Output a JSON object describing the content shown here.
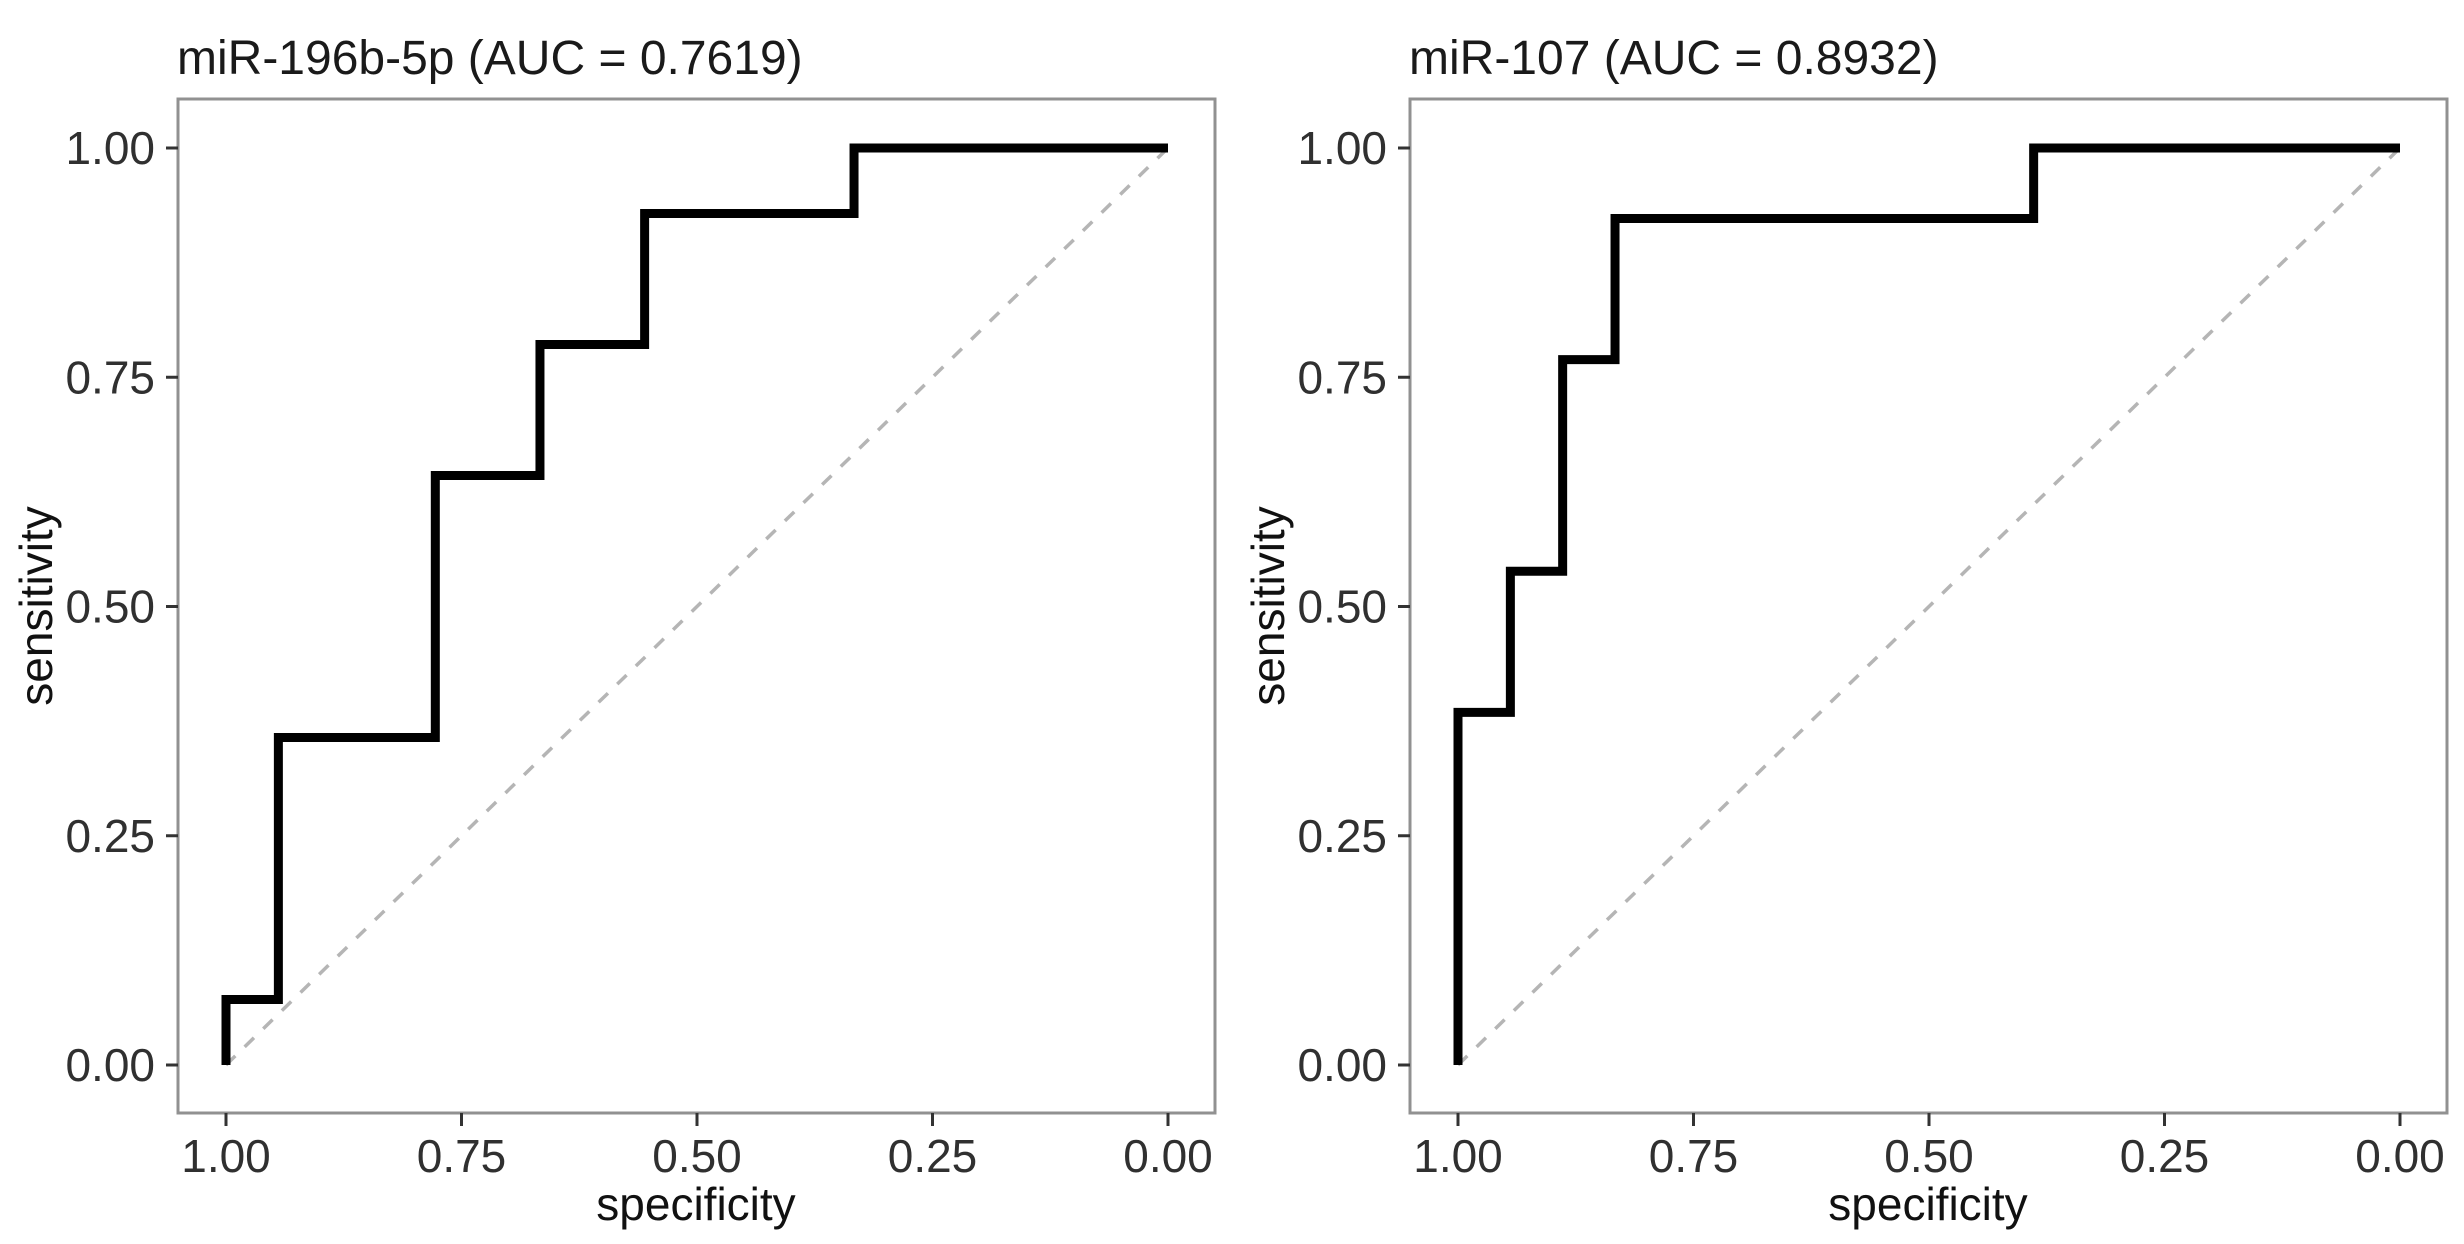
{
  "figure": {
    "background_color": "#ffffff",
    "description_titles": [
      "miR-196b-5p (AUC = 0.7619)",
      "miR-107 (AUC = 0.8932)"
    ]
  },
  "styles": {
    "curve_color": "#000000",
    "curve_width": 9,
    "reference_color": "#b5b5b5",
    "reference_width": 3.5,
    "reference_dash": "13 13",
    "panel_border_color": "#919191",
    "tick_color": "#333333"
  },
  "chart_data": [
    {
      "type": "line",
      "subtype": "roc-step-curve",
      "title": "miR-196b-5p (AUC = 0.7619)",
      "auc": 0.7619,
      "xlabel": "specificity",
      "ylabel": "sensitivity",
      "x_axis_reversed": true,
      "xlim": [
        1.0,
        0.0
      ],
      "ylim": [
        0.0,
        1.0
      ],
      "x_tick_labels": [
        "1.00",
        "0.75",
        "0.50",
        "0.25",
        "0.00"
      ],
      "y_tick_labels": [
        "0.00",
        "0.25",
        "0.50",
        "0.75",
        "1.00"
      ],
      "grid": false,
      "legend": false,
      "roc_curve": {
        "specificity": [
          1.0,
          1.0,
          0.9444,
          0.9444,
          0.7778,
          0.7778,
          0.6667,
          0.6667,
          0.5556,
          0.5556,
          0.3333,
          0.3333,
          0.0
        ],
        "sensitivity": [
          0.0,
          0.0714,
          0.0714,
          0.3571,
          0.3571,
          0.6429,
          0.6429,
          0.7857,
          0.7857,
          0.9286,
          0.9286,
          1.0,
          1.0
        ]
      },
      "reference_line": {
        "from": [
          1.0,
          0.0
        ],
        "to": [
          0.0,
          1.0
        ],
        "style": "dashed"
      }
    },
    {
      "type": "line",
      "subtype": "roc-step-curve",
      "title": "miR-107 (AUC = 0.8932)",
      "auc": 0.8932,
      "xlabel": "specificity",
      "ylabel": "sensitivity",
      "x_axis_reversed": true,
      "xlim": [
        1.0,
        0.0
      ],
      "ylim": [
        0.0,
        1.0
      ],
      "x_tick_labels": [
        "1.00",
        "0.75",
        "0.50",
        "0.25",
        "0.00"
      ],
      "y_tick_labels": [
        "0.00",
        "0.25",
        "0.50",
        "0.75",
        "1.00"
      ],
      "grid": false,
      "legend": false,
      "roc_curve": {
        "specificity": [
          1.0,
          1.0,
          0.9444,
          0.9444,
          0.8889,
          0.8889,
          0.8333,
          0.8333,
          0.3889,
          0.3889,
          0.0
        ],
        "sensitivity": [
          0.0,
          0.3846,
          0.3846,
          0.5385,
          0.5385,
          0.7692,
          0.7692,
          0.9231,
          0.9231,
          1.0,
          1.0
        ]
      },
      "reference_line": {
        "from": [
          1.0,
          0.0
        ],
        "to": [
          0.0,
          1.0
        ],
        "style": "dashed"
      }
    }
  ]
}
